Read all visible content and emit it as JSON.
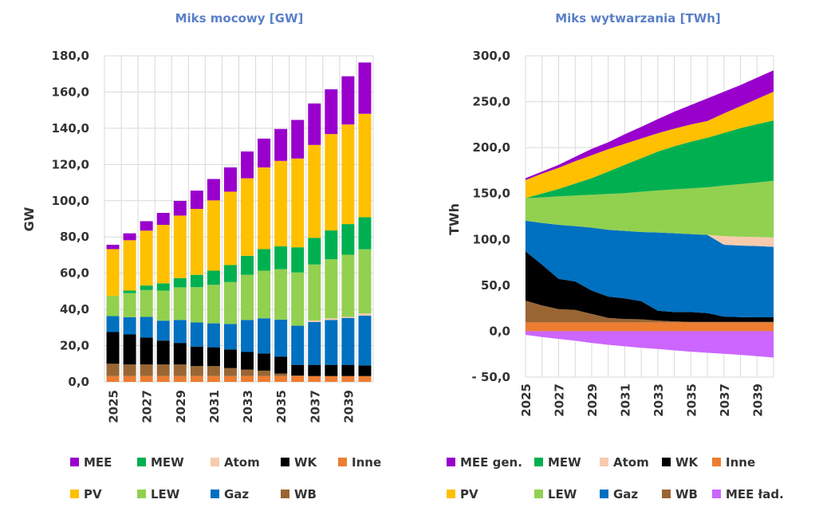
{
  "colors": {
    "MEE": "#9900CC",
    "MEE gen.": "#9900CC",
    "MEW": "#00B050",
    "Atom": "#F8CBAD",
    "WK": "#000000",
    "Inne": "#ED7D31",
    "PV": "#FFC000",
    "LEW": "#92D050",
    "Gaz": "#0070C0",
    "WB": "#996633",
    "MEE ład.": "#CC66FF",
    "title": "#5A80C8",
    "grid": "#D9D9D9"
  },
  "chart_data": [
    {
      "type": "bar",
      "stacked": true,
      "title": "Miks mocowy [GW]",
      "xlabel": "",
      "ylabel": "GW",
      "ylim": [
        0,
        180
      ],
      "yticks": [
        "0,0",
        "20,0",
        "40,0",
        "60,0",
        "80,0",
        "100,0",
        "120,0",
        "140,0",
        "160,0",
        "180,0"
      ],
      "categories": [
        2025,
        2026,
        2027,
        2028,
        2029,
        2030,
        2031,
        2032,
        2033,
        2034,
        2035,
        2036,
        2037,
        2038,
        2039,
        2040
      ],
      "xtick_labels": [
        "2025",
        "2027",
        "2029",
        "2031",
        "2033",
        "2035",
        "2037",
        "2039"
      ],
      "grid": true,
      "legend_position": "bottom",
      "legend": [
        [
          "MEE",
          "MEW",
          "Atom",
          "WK",
          "Inne"
        ],
        [
          "PV",
          "LEW",
          "Gaz",
          "WB"
        ]
      ],
      "series": [
        {
          "name": "Inne",
          "values": [
            3.2,
            3.2,
            3.2,
            3.2,
            3.2,
            3.2,
            3.2,
            3.2,
            3.2,
            3.2,
            3.2,
            3.2,
            3.2,
            3.2,
            3.2,
            3.2
          ]
        },
        {
          "name": "WB",
          "values": [
            6.8,
            6.4,
            6.4,
            6.4,
            6.4,
            5.5,
            5.5,
            4.4,
            3.6,
            3.0,
            1.4,
            0.3,
            0,
            0,
            0,
            0
          ]
        },
        {
          "name": "WK",
          "values": [
            17.5,
            16.6,
            14.9,
            13.2,
            11.9,
            10.8,
            10.4,
            10.3,
            9.7,
            9.5,
            9.4,
            5.9,
            6.2,
            6.2,
            6.2,
            5.9
          ]
        },
        {
          "name": "Gaz",
          "values": [
            8.8,
            9.5,
            11.4,
            11.0,
            12.7,
            13.3,
            13.2,
            14.1,
            17.7,
            19.4,
            20.4,
            21.6,
            23.7,
            24.8,
            25.9,
            27.5
          ]
        },
        {
          "name": "Atom",
          "values": [
            0,
            0,
            0,
            0,
            0,
            0,
            0,
            0,
            0,
            0,
            0,
            0,
            0.8,
            0.9,
            0.6,
            1.2
          ]
        },
        {
          "name": "LEW",
          "values": [
            11.2,
            13.3,
            14.8,
            16.6,
            18.0,
            19.5,
            21.3,
            23.1,
            24.9,
            26.3,
            27.8,
            29.4,
            30.9,
            32.6,
            34.3,
            35.4
          ]
        },
        {
          "name": "MEW",
          "values": [
            0,
            1.4,
            2.5,
            4.0,
            5.1,
            6.8,
            7.8,
            9.4,
            10.5,
            11.9,
            12.6,
            13.9,
            14.7,
            15.9,
            16.9,
            17.7
          ]
        },
        {
          "name": "PV",
          "values": [
            25.8,
            27.8,
            30.3,
            32.3,
            34.5,
            36.4,
            38.8,
            40.5,
            42.8,
            45.1,
            47.2,
            49.0,
            51.3,
            53.2,
            55.0,
            57.1
          ]
        },
        {
          "name": "MEE",
          "values": [
            2.4,
            3.8,
            5.2,
            6.6,
            8.1,
            10.1,
            11.8,
            13.4,
            14.8,
            15.9,
            17.6,
            21.3,
            22.9,
            24.7,
            26.6,
            28.3
          ]
        }
      ]
    },
    {
      "type": "area",
      "stacked": true,
      "title": "Miks wytwarzania [TWh]",
      "xlabel": "",
      "ylabel": "TWh",
      "ylim": [
        -50,
        300
      ],
      "yticks": [
        "- 50,0",
        "0,0",
        "50,0",
        "100,0",
        "150,0",
        "200,0",
        "250,0",
        "300,0"
      ],
      "categories": [
        2025,
        2026,
        2027,
        2028,
        2029,
        2030,
        2031,
        2032,
        2033,
        2034,
        2035,
        2036,
        2037,
        2038,
        2039,
        2040
      ],
      "xtick_labels": [
        "2025",
        "2027",
        "2029",
        "2031",
        "2033",
        "2035",
        "2037",
        "2039"
      ],
      "grid": true,
      "legend_position": "bottom",
      "legend": [
        [
          "MEE gen.",
          "MEW",
          "Atom",
          "WK",
          "Inne"
        ],
        [
          "PV",
          "LEW",
          "Gaz",
          "WB",
          "MEE ład."
        ]
      ],
      "series": [
        {
          "name": "Inne",
          "values": [
            9.6,
            9.6,
            9.6,
            9.6,
            9.6,
            9.6,
            9.6,
            9.6,
            9.6,
            9.6,
            9.6,
            9.6,
            9.6,
            9.6,
            9.6,
            9.6
          ]
        },
        {
          "name": "WB",
          "values": [
            23.7,
            18.5,
            14.5,
            13.6,
            9.2,
            4.9,
            3.7,
            3.4,
            2.0,
            1.1,
            0.5,
            0.5,
            0.5,
            0.5,
            0.5,
            0.5
          ]
        },
        {
          "name": "WK",
          "values": [
            53.7,
            44.4,
            33.0,
            31.0,
            25.5,
            23.2,
            22.4,
            19.8,
            10.7,
            10.2,
            10.8,
            9.6,
            5.8,
            5.3,
            5.0,
            5.0
          ]
        },
        {
          "name": "Gaz",
          "values": [
            33.3,
            45.5,
            58.8,
            60.3,
            68.5,
            72.7,
            73.6,
            75.3,
            85.2,
            85.8,
            84.9,
            85.2,
            78.3,
            77.9,
            77.7,
            76.8
          ]
        },
        {
          "name": "Atom",
          "values": [
            0,
            0,
            0,
            0,
            0,
            0,
            0,
            0,
            0,
            0,
            0,
            0,
            9.3,
            9.6,
            9.8,
            10.1
          ]
        },
        {
          "name": "LEW",
          "values": [
            24.6,
            27.8,
            31.1,
            33.3,
            35.9,
            39.2,
            41.1,
            43.8,
            45.8,
            47.8,
            49.9,
            51.9,
            55.1,
            57.4,
            59.4,
            61.8
          ]
        },
        {
          "name": "MEW",
          "values": [
            0,
            4.1,
            8.0,
            13.1,
            18.0,
            24.3,
            30.8,
            36.5,
            42.4,
            46.9,
            50.7,
            53.9,
            57.3,
            60.9,
            63.5,
            65.8
          ]
        },
        {
          "name": "PV",
          "values": [
            19.7,
            21.7,
            23.0,
            24.3,
            24.9,
            24.4,
            22.9,
            21.5,
            20.0,
            19.2,
            18.8,
            18.3,
            21.3,
            23.8,
            27.5,
            31.3
          ]
        },
        {
          "name": "MEE gen.",
          "values": [
            2.1,
            2.3,
            3.2,
            4.7,
            7.0,
            7.5,
            10.4,
            12.7,
            15.3,
            18.5,
            21.2,
            24.6,
            23.7,
            23.1,
            23.2,
            23.2
          ]
        },
        {
          "name": "MEE ład.",
          "values": [
            -4.0,
            -6.4,
            -8.4,
            -10.4,
            -12.7,
            -14.8,
            -16.5,
            -18.0,
            -19.4,
            -20.9,
            -22.3,
            -23.5,
            -24.6,
            -25.8,
            -27.2,
            -28.7
          ]
        }
      ]
    }
  ]
}
